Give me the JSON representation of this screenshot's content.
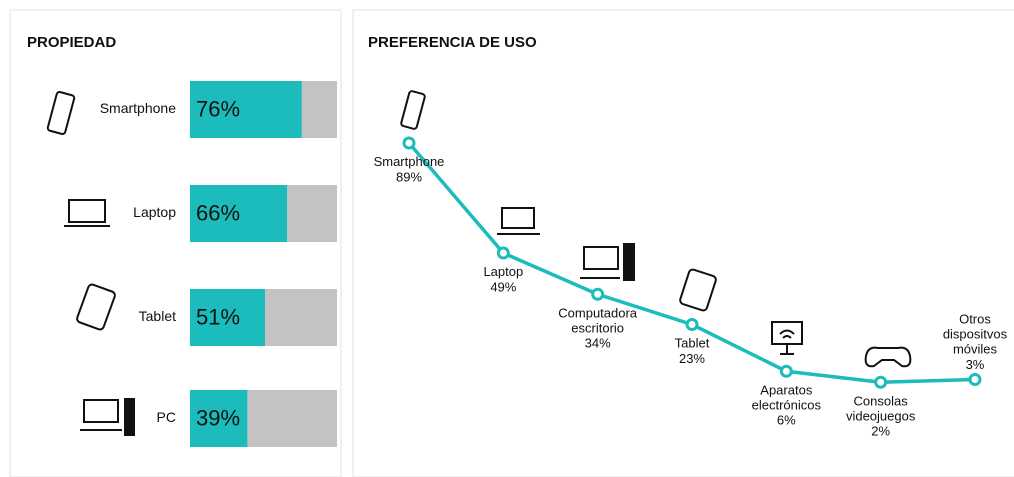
{
  "chart_data": [
    {
      "type": "bar",
      "title": "PROPIEDAD",
      "categories": [
        "Smartphone",
        "Laptop",
        "Tablet",
        "PC"
      ],
      "values": [
        76,
        66,
        51,
        39
      ],
      "value_labels": [
        "76%",
        "66%",
        "51%",
        "39%"
      ],
      "color": "#1cbcbc",
      "track_color": "#c3c3c3",
      "xlim": [
        0,
        100
      ]
    },
    {
      "type": "line",
      "title": "PREFERENCIA DE USO",
      "categories": [
        "Smartphone",
        "Laptop",
        "Computadora escritorio",
        "Tablet",
        "Aparatos electrónicos",
        "Consolas videojuegos",
        "Otros dispositvos móviles"
      ],
      "values": [
        89,
        49,
        34,
        23,
        6,
        2,
        3
      ],
      "value_labels": [
        "89%",
        "49%",
        "34%",
        "23%",
        "6%",
        "2%",
        "3%"
      ],
      "color": "#1cbcbc",
      "ylim": [
        0,
        100
      ]
    }
  ]
}
